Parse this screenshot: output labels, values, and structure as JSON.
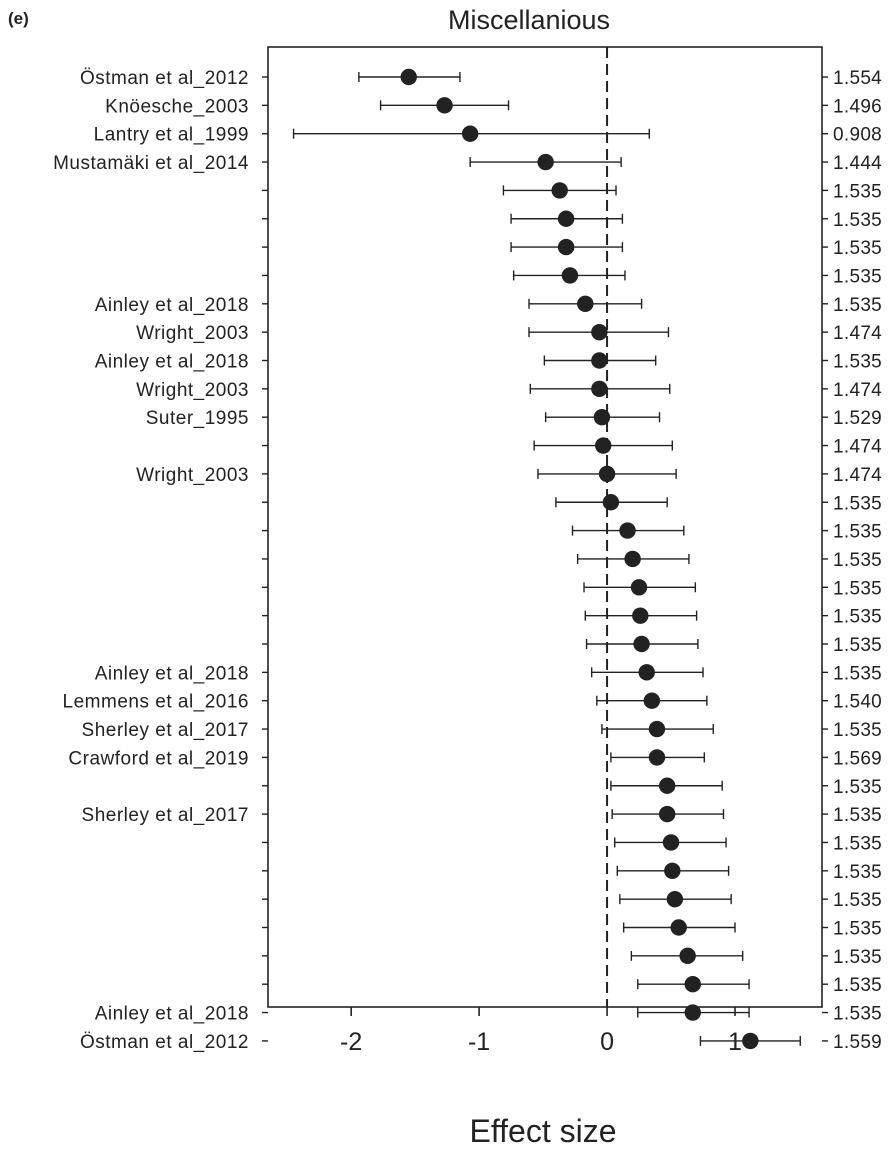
{
  "panel_label": "(e)",
  "chart_data": {
    "type": "scatter",
    "title": "Miscellanious",
    "xlabel": "Effect size",
    "ylabel": "",
    "xlim": [
      -2.65,
      1.68
    ],
    "xticks": [
      -2,
      -1,
      0,
      1
    ],
    "xtick_labels": [
      "-2",
      "-1",
      "0",
      "1"
    ],
    "reference_line_x": 0,
    "grid": false,
    "legend": "none",
    "point_color": "#222222",
    "studies": [
      {
        "label": "Östman et al_2012",
        "estimate": -1.55,
        "ci_low": -1.94,
        "ci_high": -1.15,
        "value": "1.554"
      },
      {
        "label": "Knöesche_2003",
        "estimate": -1.27,
        "ci_low": -1.77,
        "ci_high": -0.77,
        "value": "1.496"
      },
      {
        "label": "Lantry et al_1999",
        "estimate": -1.07,
        "ci_low": -2.45,
        "ci_high": 0.33,
        "value": "0.908"
      },
      {
        "label": "Mustamäki et al_2014",
        "estimate": -0.48,
        "ci_low": -1.07,
        "ci_high": 0.11,
        "value": "1.444"
      },
      {
        "label": "",
        "estimate": -0.37,
        "ci_low": -0.81,
        "ci_high": 0.07,
        "value": "1.535"
      },
      {
        "label": "",
        "estimate": -0.32,
        "ci_low": -0.75,
        "ci_high": 0.12,
        "value": "1.535"
      },
      {
        "label": "",
        "estimate": -0.32,
        "ci_low": -0.75,
        "ci_high": 0.12,
        "value": "1.535"
      },
      {
        "label": "",
        "estimate": -0.29,
        "ci_low": -0.73,
        "ci_high": 0.14,
        "value": "1.535"
      },
      {
        "label": "Ainley et al_2018",
        "estimate": -0.17,
        "ci_low": -0.61,
        "ci_high": 0.27,
        "value": "1.535"
      },
      {
        "label": "Wright_2003",
        "estimate": -0.06,
        "ci_low": -0.61,
        "ci_high": 0.48,
        "value": "1.474"
      },
      {
        "label": "Ainley et al_2018",
        "estimate": -0.06,
        "ci_low": -0.49,
        "ci_high": 0.38,
        "value": "1.535"
      },
      {
        "label": "Wright_2003",
        "estimate": -0.06,
        "ci_low": -0.6,
        "ci_high": 0.49,
        "value": "1.474"
      },
      {
        "label": "Suter_1995",
        "estimate": -0.04,
        "ci_low": -0.48,
        "ci_high": 0.41,
        "value": "1.529"
      },
      {
        "label": "",
        "estimate": -0.03,
        "ci_low": -0.57,
        "ci_high": 0.51,
        "value": "1.474"
      },
      {
        "label": "Wright_2003",
        "estimate": 0.0,
        "ci_low": -0.54,
        "ci_high": 0.54,
        "value": "1.474"
      },
      {
        "label": "",
        "estimate": 0.03,
        "ci_low": -0.4,
        "ci_high": 0.47,
        "value": "1.535"
      },
      {
        "label": "",
        "estimate": 0.16,
        "ci_low": -0.27,
        "ci_high": 0.6,
        "value": "1.535"
      },
      {
        "label": "",
        "estimate": 0.2,
        "ci_low": -0.23,
        "ci_high": 0.64,
        "value": "1.535"
      },
      {
        "label": "",
        "estimate": 0.25,
        "ci_low": -0.18,
        "ci_high": 0.69,
        "value": "1.535"
      },
      {
        "label": "",
        "estimate": 0.26,
        "ci_low": -0.17,
        "ci_high": 0.7,
        "value": "1.535"
      },
      {
        "label": "",
        "estimate": 0.27,
        "ci_low": -0.16,
        "ci_high": 0.71,
        "value": "1.535"
      },
      {
        "label": "Ainley et al_2018",
        "estimate": 0.31,
        "ci_low": -0.12,
        "ci_high": 0.75,
        "value": "1.535"
      },
      {
        "label": "Lemmens et al_2016",
        "estimate": 0.35,
        "ci_low": -0.08,
        "ci_high": 0.78,
        "value": "1.540"
      },
      {
        "label": "Sherley et al_2017",
        "estimate": 0.39,
        "ci_low": -0.04,
        "ci_high": 0.83,
        "value": "1.535"
      },
      {
        "label": "Crawford et al_2019",
        "estimate": 0.39,
        "ci_low": 0.03,
        "ci_high": 0.76,
        "value": "1.569"
      },
      {
        "label": "",
        "estimate": 0.47,
        "ci_low": 0.03,
        "ci_high": 0.9,
        "value": "1.535"
      },
      {
        "label": "Sherley et al_2017",
        "estimate": 0.47,
        "ci_low": 0.04,
        "ci_high": 0.91,
        "value": "1.535"
      },
      {
        "label": "",
        "estimate": 0.5,
        "ci_low": 0.06,
        "ci_high": 0.93,
        "value": "1.535"
      },
      {
        "label": "",
        "estimate": 0.51,
        "ci_low": 0.08,
        "ci_high": 0.95,
        "value": "1.535"
      },
      {
        "label": "",
        "estimate": 0.53,
        "ci_low": 0.1,
        "ci_high": 0.97,
        "value": "1.535"
      },
      {
        "label": "",
        "estimate": 0.56,
        "ci_low": 0.13,
        "ci_high": 1.0,
        "value": "1.535"
      },
      {
        "label": "",
        "estimate": 0.63,
        "ci_low": 0.19,
        "ci_high": 1.06,
        "value": "1.535"
      },
      {
        "label": "",
        "estimate": 0.67,
        "ci_low": 0.24,
        "ci_high": 1.11,
        "value": "1.535"
      },
      {
        "label": "Ainley et al_2018",
        "estimate": 0.67,
        "ci_low": 0.24,
        "ci_high": 1.11,
        "value": "1.535"
      },
      {
        "label": "Östman et al_2012",
        "estimate": 1.12,
        "ci_low": 0.73,
        "ci_high": 1.51,
        "value": "1.559"
      }
    ]
  }
}
